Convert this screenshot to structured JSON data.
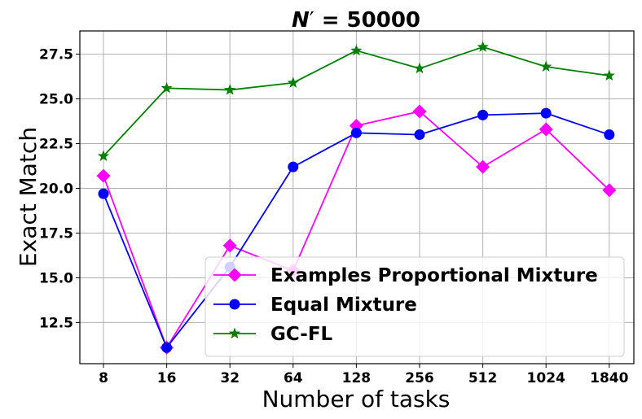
{
  "chart_data": {
    "type": "line",
    "title_main": "N",
    "title_prime": "′",
    "title_rest": " = 50000",
    "xlabel": "Number of tasks",
    "ylabel": "Exact Match",
    "categories": [
      "8",
      "16",
      "32",
      "64",
      "128",
      "256",
      "512",
      "1024",
      "1840"
    ],
    "ylim": [
      10.2,
      28.8
    ],
    "yticks": [
      12.5,
      15.0,
      17.5,
      20.0,
      22.5,
      25.0,
      27.5
    ],
    "ytick_labels": [
      "12.5",
      "15.0",
      "17.5",
      "20.0",
      "22.5",
      "25.0",
      "27.5"
    ],
    "grid": true,
    "legend_position": "bottom-right",
    "series": [
      {
        "name": "Examples Proportional Mixture",
        "color": "#ff00ff",
        "marker": "diamond",
        "values": [
          20.7,
          11.1,
          16.8,
          15.4,
          23.5,
          24.3,
          21.2,
          23.3,
          19.9
        ]
      },
      {
        "name": "Equal Mixture",
        "color": "#0000ff",
        "marker": "circle",
        "values": [
          19.7,
          11.1,
          15.6,
          21.2,
          23.1,
          23.0,
          24.1,
          24.2,
          23.0
        ]
      },
      {
        "name": "GC-FL",
        "color": "#008000",
        "marker": "star",
        "values": [
          21.8,
          25.6,
          25.5,
          25.9,
          27.7,
          26.7,
          27.9,
          26.8,
          26.3
        ]
      }
    ]
  }
}
